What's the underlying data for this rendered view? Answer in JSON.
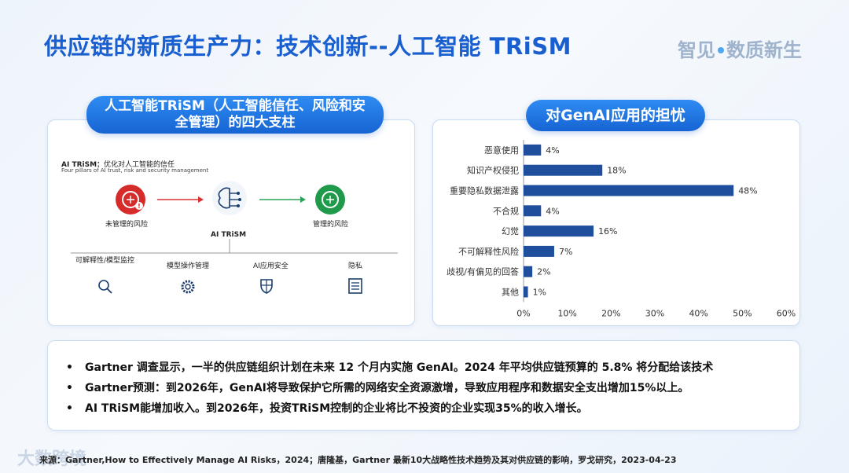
{
  "header": {
    "title": "供应链的新质生产力：技术创新--人工智能 TRiSM",
    "brand_left": "智见",
    "brand_right": "数质新生"
  },
  "left_panel": {
    "pill_line1": "人工智能TRiSM（人工智能信任、风险和安",
    "pill_line2": "全管理）的四大支柱",
    "heading_bold": "AI TRiSM：",
    "heading_rest": "优化对人工智能的信任",
    "subheading": "Four pillars of AI trust, risk and security management",
    "nodes": {
      "unmanaged": "未管理的风险",
      "center": "AI TRiSM",
      "managed": "管理的风险"
    },
    "pillars": [
      {
        "label": "可解释性/模型监控",
        "icon": "search-icon"
      },
      {
        "label": "模型操作管理",
        "icon": "gear-icon"
      },
      {
        "label": "AI应用安全",
        "icon": "shield-icon"
      },
      {
        "label": "隐私",
        "icon": "list-icon"
      }
    ],
    "colors": {
      "risk_red": "#d62b2b",
      "managed_green": "#1f9a4a",
      "arrow_red": "#d93030",
      "arrow_green": "#2aa357"
    }
  },
  "right_panel": {
    "pill": "对GenAI应用的担忧"
  },
  "chart_data": {
    "type": "bar",
    "orientation": "horizontal",
    "categories": [
      "恶意使用",
      "知识产权侵犯",
      "重要隐私数据泄露",
      "不合规",
      "幻觉",
      "不可解释性风险",
      "歧视/有偏见的回答",
      "其他"
    ],
    "values": [
      4,
      18,
      48,
      4,
      16,
      7,
      2,
      1
    ],
    "value_labels": [
      "4%",
      "18%",
      "48%",
      "4%",
      "16%",
      "7%",
      "2%",
      "1%"
    ],
    "xlim": [
      0,
      60
    ],
    "xticks": [
      "0%",
      "10%",
      "20%",
      "30%",
      "40%",
      "50%",
      "60%"
    ],
    "bar_color": "#1f4e9c",
    "grid": false
  },
  "bullets": [
    "Gartner 调查显示，一半的供应链组织计划在未来 12 个月内实施 GenAI。2024 年平均供应链预算的 5.8% 将分配给该技术",
    "Gartner预测：到2026年，GenAI将导致保护它所需的网络安全资源激增，导致应用程序和数据安全支出增加15%以上。",
    "AI TRiSM能增加收入。到2026年，投资TRiSM控制的企业将比不投资的企业实现35%的收入增长。"
  ],
  "footer": {
    "source": "来源：Gartner,How to Effectively Manage AI Risks，2024；唐隆基，Gartner 最新10大战略性技术趋势及其对供应链的影响，罗戈研究，2023-04-23",
    "watermark": "大数跨境"
  }
}
